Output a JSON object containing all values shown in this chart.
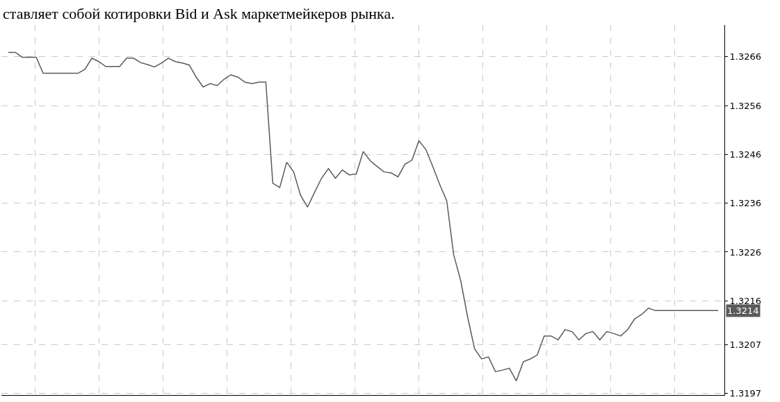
{
  "chart_data": {
    "type": "line",
    "annotations": [
      "ставляет собой котировки Bid и Ask маркетмейкеров рынка.",
      "1.3214"
    ],
    "categories": [
      null,
      null,
      null,
      null,
      null,
      null,
      null,
      null,
      null,
      null,
      null,
      null,
      null,
      null,
      null,
      null,
      null,
      null,
      null,
      null,
      null,
      null,
      null,
      null,
      null,
      null,
      null,
      null,
      null,
      null,
      null,
      null,
      null,
      null,
      null,
      null,
      null,
      null,
      null,
      null,
      null,
      null,
      null,
      null,
      null,
      null,
      null,
      null,
      null,
      null,
      null,
      null,
      null,
      null,
      null,
      null,
      null,
      null,
      null,
      null,
      null,
      null,
      null,
      null,
      null,
      null,
      null,
      null,
      null,
      null,
      null,
      null,
      null,
      null,
      null,
      null,
      null,
      null,
      null,
      null,
      null,
      null,
      null,
      null,
      null,
      null,
      null,
      null,
      null,
      null,
      null,
      null,
      null,
      null,
      null,
      null,
      null,
      null,
      null,
      null,
      null,
      null,
      null
    ],
    "series": [
      {
        "color": "#5a5a5a",
        "values": [
          1.32669,
          1.32669,
          1.32659,
          1.32659,
          1.32659,
          1.32626,
          1.32626,
          1.32626,
          1.32626,
          1.32626,
          1.32626,
          1.32634,
          1.32657,
          1.3265,
          1.3264,
          1.3264,
          1.3264,
          1.32657,
          1.32657,
          1.32648,
          1.32644,
          1.32639,
          1.32647,
          1.32657,
          1.3265,
          1.32647,
          1.32643,
          1.32618,
          1.32598,
          1.32605,
          1.32601,
          1.32614,
          1.32623,
          1.32618,
          1.32608,
          1.32605,
          1.32608,
          1.32608,
          1.32401,
          1.32392,
          1.32444,
          1.32424,
          1.32376,
          1.32352,
          1.32382,
          1.32411,
          1.32431,
          1.32411,
          1.32428,
          1.32418,
          1.3242,
          1.32466,
          1.32447,
          1.32435,
          1.32424,
          1.32422,
          1.32414,
          1.3244,
          1.32448,
          1.32488,
          1.3247,
          1.32435,
          1.32398,
          1.32365,
          1.32254,
          1.32202,
          1.32127,
          1.32062,
          1.32041,
          1.32045,
          1.32015,
          1.32018,
          1.32022,
          1.31996,
          1.32035,
          1.32041,
          1.32049,
          1.32088,
          1.32088,
          1.3208,
          1.32101,
          1.32097,
          1.3208,
          1.32093,
          1.32097,
          1.3208,
          1.32097,
          1.32093,
          1.32088,
          1.32101,
          1.32123,
          1.32132,
          1.32145,
          1.3214,
          1.3214,
          1.3214,
          1.3214,
          1.3214,
          1.3214,
          1.3214,
          1.3214,
          1.3214,
          1.3214
        ]
      }
    ],
    "ylim": [
      1.31967,
      1.32725
    ],
    "yticks": [
      1.3197,
      1.3207,
      1.3216,
      1.3226,
      1.3236,
      1.3246,
      1.3256,
      1.3266
    ],
    "tick_labels": "y",
    "grid": true,
    "marker": "none",
    "line_style": "solid"
  }
}
